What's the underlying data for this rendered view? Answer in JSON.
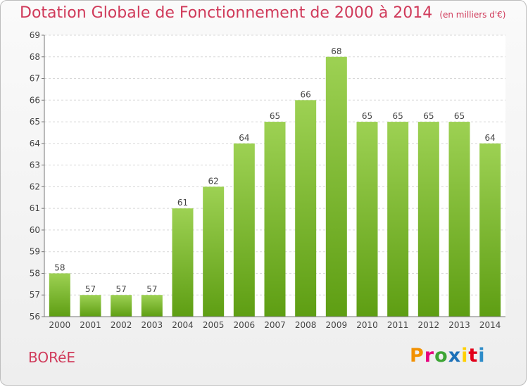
{
  "header": {
    "title": "Dotation Globale de Fonctionnement de 2000 à 2014",
    "unit": "(en milliers d'€)"
  },
  "footer": {
    "commune": "BORéE",
    "brand": "Proxiti",
    "brand_colors": [
      "#f29100",
      "#e6007e",
      "#3da535",
      "#1d71b8",
      "#ffd000",
      "#e2001a",
      "#2e8cc9"
    ]
  },
  "colors": {
    "title": "#d03a5a",
    "bar_top": "#9dd153",
    "bar_bottom": "#5e9e13",
    "grid": "#d8d8d8",
    "axis": "#777777",
    "text": "#444444"
  },
  "chart_data": {
    "type": "bar",
    "categories": [
      "2000",
      "2001",
      "2002",
      "2003",
      "2004",
      "2005",
      "2006",
      "2007",
      "2008",
      "2009",
      "2010",
      "2011",
      "2012",
      "2013",
      "2014"
    ],
    "values": [
      58,
      57,
      57,
      57,
      61,
      62,
      64,
      65,
      66,
      68,
      65,
      65,
      65,
      65,
      64
    ],
    "ylim": [
      56,
      69
    ],
    "yticks": [
      56,
      57,
      58,
      59,
      60,
      61,
      62,
      63,
      64,
      65,
      66,
      67,
      68,
      69
    ],
    "grid": true,
    "data_labels": true
  }
}
